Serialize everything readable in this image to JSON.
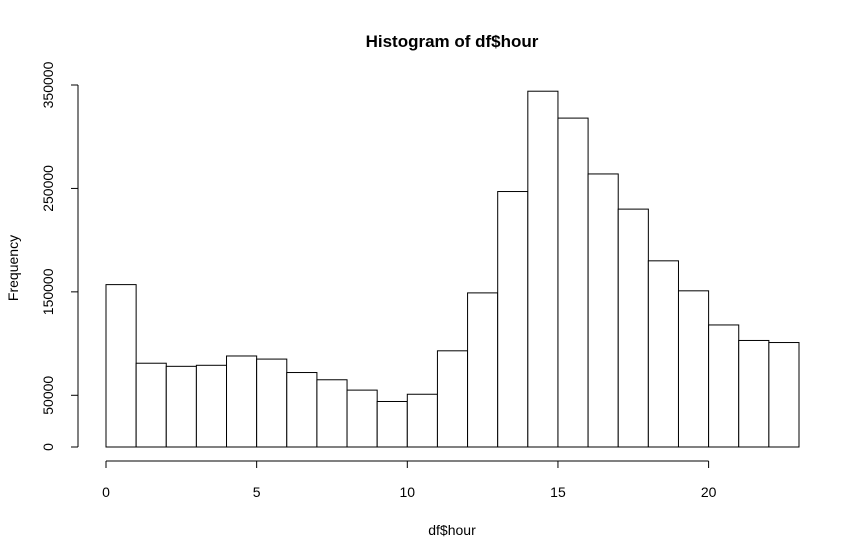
{
  "chart_data": {
    "type": "bar",
    "title": "Histogram of df$hour",
    "xlabel": "df$hour",
    "ylabel": "Frequency",
    "bin_edges": [
      0,
      1,
      2,
      3,
      4,
      5,
      6,
      7,
      8,
      9,
      10,
      11,
      12,
      13,
      14,
      15,
      16,
      17,
      18,
      19,
      20,
      21,
      22,
      23
    ],
    "values": [
      157000,
      81000,
      78000,
      79000,
      88000,
      85000,
      72000,
      65000,
      55000,
      44000,
      51000,
      93000,
      149000,
      247000,
      344000,
      318000,
      264000,
      230000,
      180000,
      151000,
      118000,
      103000,
      101000
    ],
    "xlim": [
      0,
      23
    ],
    "ylim": [
      0,
      350000
    ],
    "x_ticks": [
      0,
      5,
      10,
      15,
      20
    ],
    "x_tick_labels": [
      "0",
      "5",
      "10",
      "15",
      "20"
    ],
    "y_ticks": [
      0,
      50000,
      150000,
      250000,
      350000
    ],
    "y_tick_labels": [
      "0",
      "50000",
      "150000",
      "250000",
      "350000"
    ],
    "colors": {
      "bar_fill": "#ffffff",
      "bar_stroke": "#000000"
    }
  }
}
